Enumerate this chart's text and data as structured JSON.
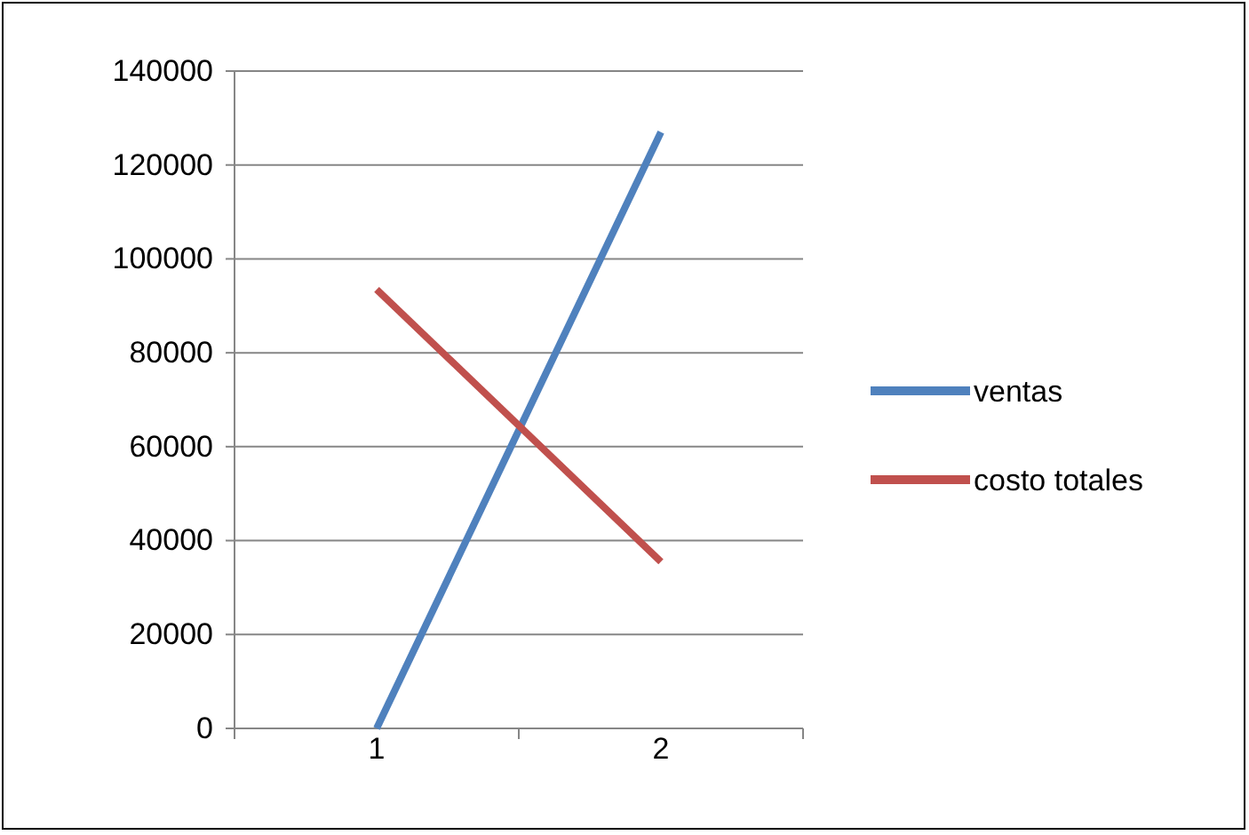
{
  "chart_data": {
    "type": "line",
    "categories": [
      "1",
      "2"
    ],
    "series": [
      {
        "name": "ventas",
        "color": "#4f81bd",
        "values": [
          0,
          127000
        ]
      },
      {
        "name": "costo totales",
        "color": "#c0504d",
        "values": [
          93500,
          35500
        ]
      }
    ],
    "ylim": [
      0,
      140000
    ],
    "yticks": [
      0,
      20000,
      40000,
      60000,
      80000,
      100000,
      120000,
      140000
    ],
    "grid": "y",
    "legend": "right",
    "marker": "none",
    "line_style": "solid"
  }
}
